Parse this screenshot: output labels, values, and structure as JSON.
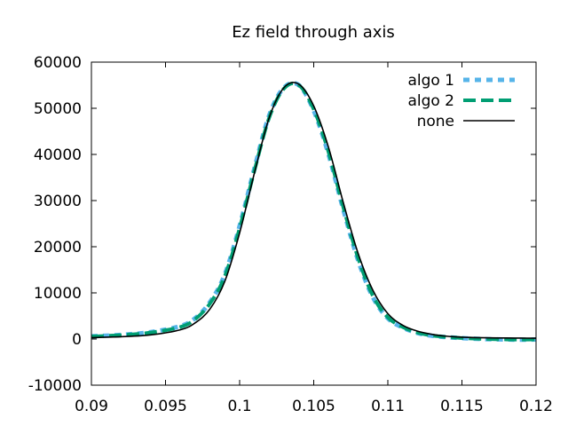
{
  "chart_data": {
    "type": "line",
    "title": "Ez field through axis",
    "xlabel": "",
    "ylabel": "",
    "xlim": [
      0.09,
      0.12
    ],
    "ylim": [
      -10000,
      60000
    ],
    "xticks": [
      0.09,
      0.095,
      0.1,
      0.105,
      0.11,
      0.115,
      0.12
    ],
    "xtick_labels": [
      "0.09",
      "0.095",
      "0.1",
      "0.105",
      "0.11",
      "0.115",
      "0.12"
    ],
    "yticks": [
      -10000,
      0,
      10000,
      20000,
      30000,
      40000,
      50000,
      60000
    ],
    "ytick_labels": [
      "-10000",
      "0",
      "10000",
      "20000",
      "30000",
      "40000",
      "50000",
      "60000"
    ],
    "legend_position": "top-right",
    "series": [
      {
        "name": "algo 1",
        "color": "#56b4e9",
        "style": "dotted",
        "x": [
          0.09,
          0.092,
          0.094,
          0.096,
          0.097,
          0.098,
          0.099,
          0.1,
          0.101,
          0.102,
          0.103,
          0.104,
          0.105,
          0.106,
          0.107,
          0.108,
          0.109,
          0.11,
          0.111,
          0.112,
          0.113,
          0.114,
          0.115,
          0.116,
          0.117,
          0.118,
          0.119,
          0.12
        ],
        "y": [
          600,
          900,
          1500,
          2800,
          4500,
          8000,
          14000,
          24500,
          37000,
          48500,
          54500,
          55000,
          49500,
          40000,
          28000,
          17000,
          9000,
          4500,
          2500,
          1300,
          700,
          400,
          200,
          50,
          -50,
          -100,
          -150,
          -100
        ]
      },
      {
        "name": "algo 2",
        "color": "#009e73",
        "style": "dashed",
        "x": [
          0.09,
          0.092,
          0.094,
          0.096,
          0.097,
          0.098,
          0.099,
          0.1,
          0.101,
          0.102,
          0.103,
          0.104,
          0.105,
          0.106,
          0.107,
          0.108,
          0.109,
          0.11,
          0.111,
          0.112,
          0.113,
          0.114,
          0.115,
          0.116,
          0.117,
          0.118,
          0.119,
          0.12
        ],
        "y": [
          550,
          850,
          1400,
          2600,
          4300,
          7700,
          13600,
          24000,
          36500,
          48000,
          54300,
          55000,
          49800,
          40500,
          28500,
          17500,
          9300,
          4700,
          2600,
          1400,
          750,
          420,
          220,
          70,
          -30,
          -90,
          -120,
          -80
        ]
      },
      {
        "name": "none",
        "color": "#000000",
        "style": "solid",
        "x": [
          0.09,
          0.092,
          0.094,
          0.096,
          0.097,
          0.098,
          0.099,
          0.1,
          0.101,
          0.102,
          0.103,
          0.104,
          0.105,
          0.106,
          0.107,
          0.108,
          0.109,
          0.11,
          0.111,
          0.112,
          0.113,
          0.114,
          0.115,
          0.116,
          0.117,
          0.118,
          0.119,
          0.12
        ],
        "y": [
          300,
          500,
          900,
          2000,
          3500,
          6500,
          12500,
          23000,
          36000,
          48000,
          54500,
          55200,
          50500,
          41500,
          29500,
          18500,
          10500,
          5500,
          3000,
          1700,
          1000,
          600,
          400,
          300,
          250,
          220,
          200,
          180
        ]
      }
    ]
  }
}
